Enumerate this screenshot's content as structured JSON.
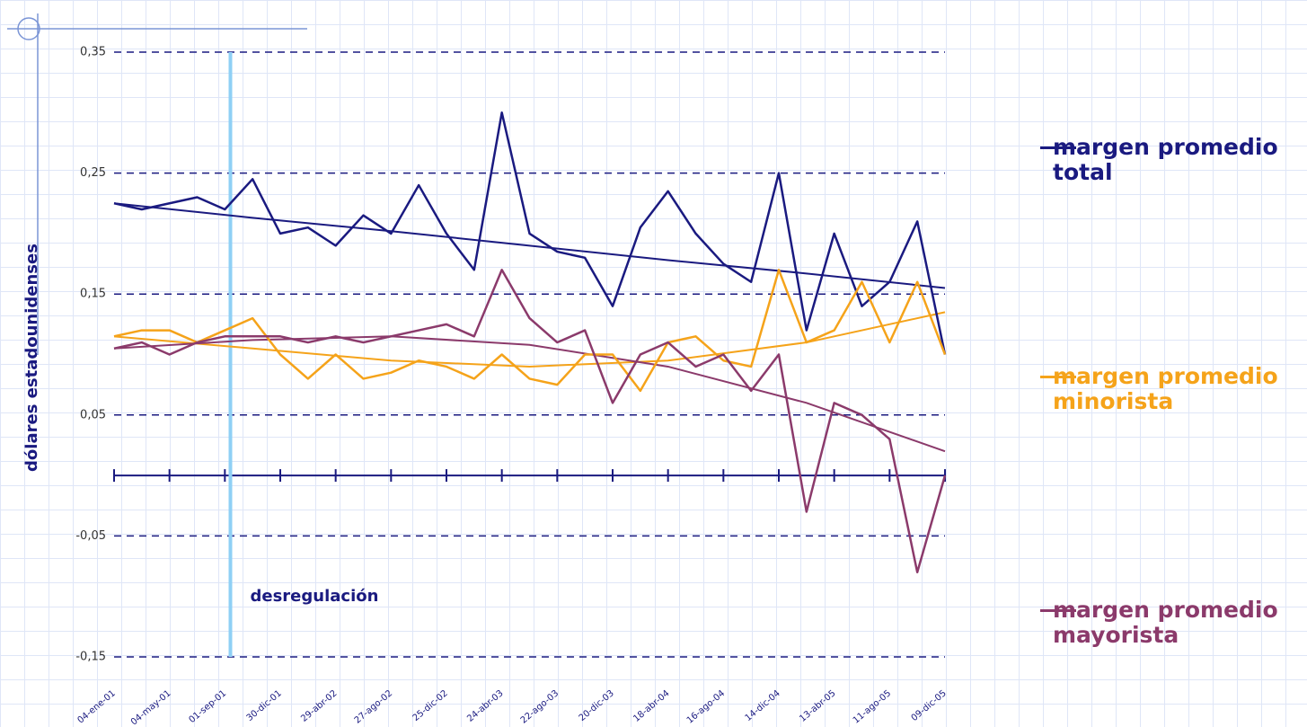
{
  "chart_data": {
    "type": "line",
    "y_label": "dólares estadounidenses",
    "categories": [
      "04-ene-01",
      null,
      "04-may-01",
      null,
      "01-sep-01",
      null,
      "30-dic-01",
      null,
      "29-abr-02",
      null,
      "27-ago-02",
      null,
      "25-dic-02",
      null,
      "24-abr-03",
      null,
      "22-ago-03",
      null,
      "20-dic-03",
      null,
      "18-abr-04",
      null,
      "16-ago-04",
      null,
      "14-dic-04",
      null,
      "13-abr-05",
      null,
      "11-ago-05",
      null,
      "09-dic-05"
    ],
    "series": [
      {
        "name": "margen promedio total",
        "color": "#1a1a80",
        "values": [
          0.225,
          0.22,
          0.225,
          0.23,
          0.22,
          0.245,
          0.2,
          0.205,
          0.19,
          0.215,
          0.2,
          0.24,
          0.2,
          0.17,
          0.3,
          0.2,
          0.185,
          0.18,
          0.14,
          0.205,
          0.235,
          0.2,
          0.175,
          0.16,
          0.25,
          0.12,
          0.2,
          0.14,
          0.16,
          0.21,
          0.1
        ]
      },
      {
        "name": "margen promedio minorista",
        "color": "#f5a31a",
        "values": [
          0.115,
          0.12,
          0.12,
          0.11,
          0.12,
          0.13,
          0.1,
          0.08,
          0.1,
          0.08,
          0.085,
          0.095,
          0.09,
          0.08,
          0.1,
          0.08,
          0.075,
          0.1,
          0.1,
          0.07,
          0.11,
          0.115,
          0.095,
          0.09,
          0.17,
          0.11,
          0.12,
          0.16,
          0.11,
          0.16,
          0.1
        ]
      },
      {
        "name": "margen promedio mayorista",
        "color": "#8b3a6b",
        "values": [
          0.105,
          0.11,
          0.1,
          0.11,
          0.115,
          0.115,
          0.115,
          0.11,
          0.115,
          0.11,
          0.115,
          0.12,
          0.125,
          0.115,
          0.17,
          0.13,
          0.11,
          0.12,
          0.06,
          0.1,
          0.11,
          0.09,
          0.1,
          0.07,
          0.1,
          -0.03,
          0.06,
          0.05,
          0.03,
          -0.08,
          0.0
        ]
      }
    ],
    "trendlines": [
      {
        "color": "#1a1a80",
        "x": [
          0,
          5,
          10,
          15,
          20,
          25,
          30
        ],
        "values": [
          0.225,
          0.213,
          0.202,
          0.19,
          0.178,
          0.167,
          0.155
        ]
      },
      {
        "color": "#f5a31a",
        "x": [
          0,
          5,
          10,
          15,
          20,
          25,
          30
        ],
        "values": [
          0.115,
          0.105,
          0.095,
          0.09,
          0.095,
          0.11,
          0.135
        ]
      },
      {
        "color": "#8b3a6b",
        "x": [
          0,
          5,
          10,
          15,
          20,
          25,
          30
        ],
        "values": [
          0.105,
          0.112,
          0.115,
          0.108,
          0.09,
          0.06,
          0.02
        ]
      }
    ],
    "annotation": {
      "text": "desregulación",
      "x": 4.2
    },
    "ylim": [
      -0.15,
      0.35
    ],
    "yticks": [
      {
        "value": -0.15,
        "label": "-0,15"
      },
      {
        "value": -0.05,
        "label": "-0,05"
      },
      {
        "value": 0.05,
        "label": "0,05"
      },
      {
        "value": 0.15,
        "label": "0,15"
      },
      {
        "value": 0.25,
        "label": "0,25"
      },
      {
        "value": 0.35,
        "label": "0,35"
      }
    ],
    "grid": true
  }
}
